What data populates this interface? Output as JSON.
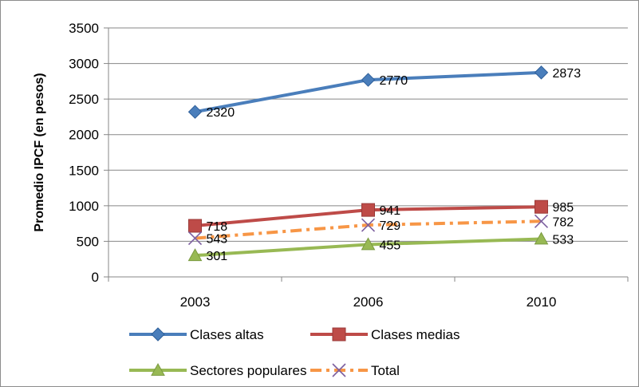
{
  "chart_data": {
    "type": "line",
    "title": "",
    "xlabel": "",
    "ylabel": "Promedio IPCF (en pesos)",
    "categories": [
      "2003",
      "2006",
      "2010"
    ],
    "ylim": [
      0,
      3500
    ],
    "yticks": [
      0,
      500,
      1000,
      1500,
      2000,
      2500,
      3000,
      3500
    ],
    "grid": "horizontal",
    "legend_position": "bottom",
    "series": [
      {
        "name": "Clases altas",
        "values": [
          2320,
          2770,
          2873
        ],
        "color": "#4a7ebb",
        "marker": "diamond",
        "dash": "solid"
      },
      {
        "name": "Clases medias",
        "values": [
          718,
          941,
          985
        ],
        "color": "#be4b48",
        "marker": "square",
        "dash": "solid"
      },
      {
        "name": "Sectores populares",
        "values": [
          301,
          455,
          533
        ],
        "color": "#98b954",
        "marker": "triangle",
        "dash": "solid"
      },
      {
        "name": "Total",
        "values": [
          543,
          729,
          782
        ],
        "color": "#f79646",
        "marker_color": "#7d60a0",
        "marker": "x",
        "dash": "dashdot"
      }
    ]
  }
}
